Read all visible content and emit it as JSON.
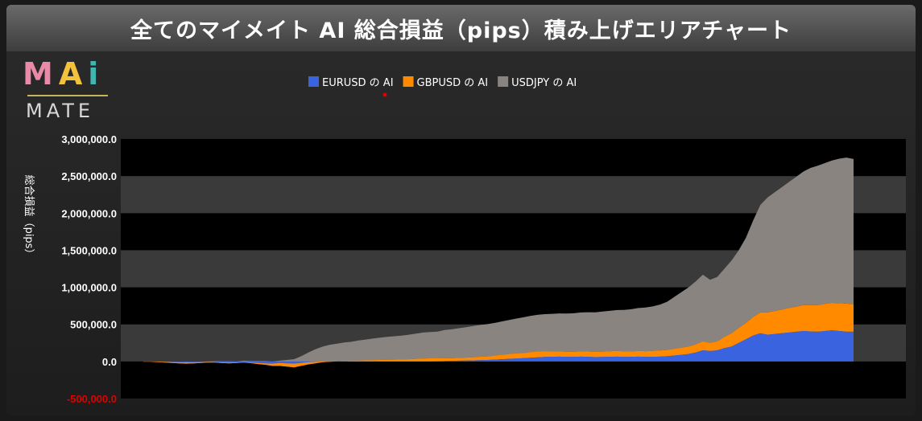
{
  "title": "全てのマイメイト AI 総合損益（pips）積み上げエリアチャート",
  "logo": {
    "m": "M",
    "a": "A",
    "i": "i",
    "sub": "MATE"
  },
  "colors": {
    "background": "#222222",
    "title_bar": "#555555",
    "plot_black": "#000000",
    "plot_band": "#3a3a3a",
    "eurusd": "#3a63e0",
    "gbpusd": "#ff8a00",
    "usdjpy": "#8a8480",
    "axis_text": "#ffffff",
    "negative_tick": "#e00000",
    "logo_m": "#e88aa8",
    "logo_a": "#f2c23c",
    "logo_i": "#41b5b0"
  },
  "chart_data": {
    "type": "area",
    "stacked": true,
    "title": "全てのマイメイト AI 総合損益（pips）積み上げエリアチャート",
    "xlabel": "",
    "ylabel": "総合損益（pips）",
    "ylim": [
      -500000,
      3000000
    ],
    "yticks": [
      -500000,
      0,
      500000,
      1000000,
      1500000,
      2000000,
      2500000,
      3000000
    ],
    "ytick_labels": [
      "-500,000.0",
      "0.0",
      "500,000.0",
      "1,000,000.0",
      "1,500,000.0",
      "2,000,000.0",
      "2,500,000.0",
      "3,000,000.0"
    ],
    "grid": "horizontal-bands",
    "legend_position": "top-center",
    "x": [
      1,
      2,
      3,
      4,
      5,
      6,
      7,
      8,
      9,
      10,
      11,
      12,
      13,
      14,
      15,
      16,
      17,
      18,
      19,
      20,
      21,
      22,
      23,
      24,
      25,
      26,
      27,
      28,
      29,
      30,
      31,
      32,
      33,
      34,
      35,
      36,
      37,
      38,
      39,
      40,
      41,
      42,
      43,
      44,
      45,
      46,
      47,
      48,
      49,
      50,
      51,
      52,
      53,
      54,
      55,
      56,
      57,
      58,
      59,
      60,
      61,
      62,
      63,
      64,
      65,
      66,
      67,
      68,
      69,
      70,
      71,
      72,
      73,
      74,
      75,
      76,
      77,
      78,
      79,
      80,
      81,
      82,
      83,
      84,
      85,
      86,
      87,
      88,
      89,
      90,
      91,
      92,
      93,
      94,
      95,
      96,
      97,
      98,
      99,
      100
    ],
    "series": [
      {
        "name": "EURUSD の AI",
        "color": "#3a63e0",
        "values": [
          0,
          0,
          -2000,
          -5000,
          -8000,
          -10000,
          -12000,
          -10000,
          -8000,
          -5000,
          -8000,
          -12000,
          -15000,
          -12000,
          -10000,
          -15000,
          -20000,
          -25000,
          -30000,
          -20000,
          -25000,
          -30000,
          -20000,
          -10000,
          -5000,
          0,
          0,
          0,
          0,
          0,
          0,
          0,
          0,
          0,
          0,
          0,
          0,
          0,
          0,
          0,
          0,
          2000,
          5000,
          8000,
          10000,
          12000,
          15000,
          18000,
          20000,
          25000,
          30000,
          35000,
          40000,
          45000,
          50000,
          55000,
          60000,
          62000,
          65000,
          60000,
          62000,
          65000,
          62000,
          58000,
          60000,
          62000,
          65000,
          60000,
          62000,
          65000,
          60000,
          62000,
          65000,
          70000,
          80000,
          90000,
          100000,
          120000,
          150000,
          140000,
          150000,
          180000,
          200000,
          250000,
          300000,
          350000,
          380000,
          360000,
          370000,
          380000,
          390000,
          400000,
          410000,
          405000,
          400000,
          410000,
          420000,
          410000,
          400000,
          400000
        ]
      },
      {
        "name": "GBPUSD の AI",
        "color": "#ff8a00",
        "values": [
          -5000,
          -5000,
          -8000,
          -10000,
          -12000,
          -15000,
          -18000,
          -15000,
          -12000,
          -10000,
          -8000,
          -10000,
          -12000,
          -8000,
          -5000,
          -8000,
          -15000,
          -20000,
          -30000,
          -40000,
          -45000,
          -50000,
          -40000,
          -30000,
          -20000,
          -10000,
          -5000,
          0,
          5000,
          10000,
          12000,
          15000,
          18000,
          20000,
          22000,
          25000,
          28000,
          30000,
          35000,
          40000,
          42000,
          40000,
          38000,
          35000,
          38000,
          40000,
          42000,
          45000,
          48000,
          55000,
          60000,
          65000,
          68000,
          70000,
          75000,
          80000,
          78000,
          75000,
          72000,
          70000,
          68000,
          70000,
          72000,
          70000,
          72000,
          75000,
          78000,
          75000,
          72000,
          75000,
          78000,
          80000,
          82000,
          85000,
          90000,
          95000,
          100000,
          110000,
          120000,
          110000,
          120000,
          150000,
          180000,
          200000,
          220000,
          250000,
          280000,
          300000,
          310000,
          320000,
          330000,
          340000,
          350000,
          355000,
          360000,
          365000,
          370000,
          375000,
          380000,
          370000
        ]
      },
      {
        "name": "USDJPY の AI",
        "color": "#8a8480",
        "values": [
          0,
          0,
          0,
          5000,
          8000,
          10000,
          12000,
          10000,
          8000,
          15000,
          20000,
          25000,
          30000,
          20000,
          25000,
          30000,
          40000,
          50000,
          60000,
          70000,
          90000,
          110000,
          130000,
          160000,
          190000,
          210000,
          230000,
          240000,
          250000,
          255000,
          270000,
          280000,
          290000,
          300000,
          310000,
          315000,
          320000,
          330000,
          340000,
          350000,
          355000,
          360000,
          380000,
          390000,
          400000,
          410000,
          420000,
          430000,
          435000,
          440000,
          450000,
          460000,
          470000,
          480000,
          490000,
          495000,
          500000,
          505000,
          510000,
          515000,
          520000,
          525000,
          530000,
          535000,
          540000,
          545000,
          550000,
          560000,
          570000,
          580000,
          590000,
          600000,
          620000,
          650000,
          700000,
          750000,
          800000,
          850000,
          900000,
          850000,
          870000,
          920000,
          980000,
          1050000,
          1150000,
          1300000,
          1450000,
          1550000,
          1600000,
          1650000,
          1700000,
          1750000,
          1800000,
          1850000,
          1880000,
          1900000,
          1920000,
          1950000,
          1970000,
          1960000
        ]
      }
    ]
  }
}
